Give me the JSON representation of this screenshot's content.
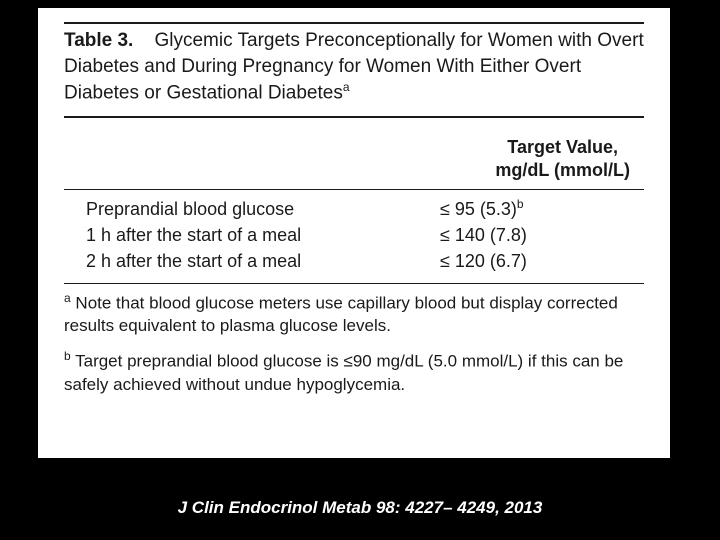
{
  "table": {
    "label": "Table 3.",
    "caption": "Glycemic Targets Preconceptionally for Women with Overt Diabetes and During Pregnancy for Women With Either Overt Diabetes or Gestational Diabetes",
    "caption_sup": "a",
    "column_header_line1": "Target Value,",
    "column_header_line2": "mg/dL (mmol/L)",
    "rows": [
      {
        "label": "Preprandial blood glucose",
        "value": "≤ 95 (5.3)",
        "value_sup": "b"
      },
      {
        "label": "1 h after the start of a meal",
        "value": "≤ 140 (7.8)",
        "value_sup": ""
      },
      {
        "label": "2 h after the start of a meal",
        "value": "≤ 120 (6.7)",
        "value_sup": ""
      }
    ],
    "footnotes": [
      {
        "marker": "a",
        "text": "Note that blood glucose meters use capillary blood but display corrected results equivalent to plasma glucose levels."
      },
      {
        "marker": "b",
        "text": "Target preprandial blood glucose is ≤90 mg/dL (5.0 mmol/L) if this can be safely achieved without undue hypoglycemia."
      }
    ]
  },
  "citation": "J Clin Endocrinol Metab 98: 4227– 4249, 2013",
  "colors": {
    "page_bg": "#000000",
    "panel_bg": "#ffffff",
    "text": "#1a1a1a",
    "rule": "#1a1a1a",
    "citation_text": "#ffffff"
  }
}
